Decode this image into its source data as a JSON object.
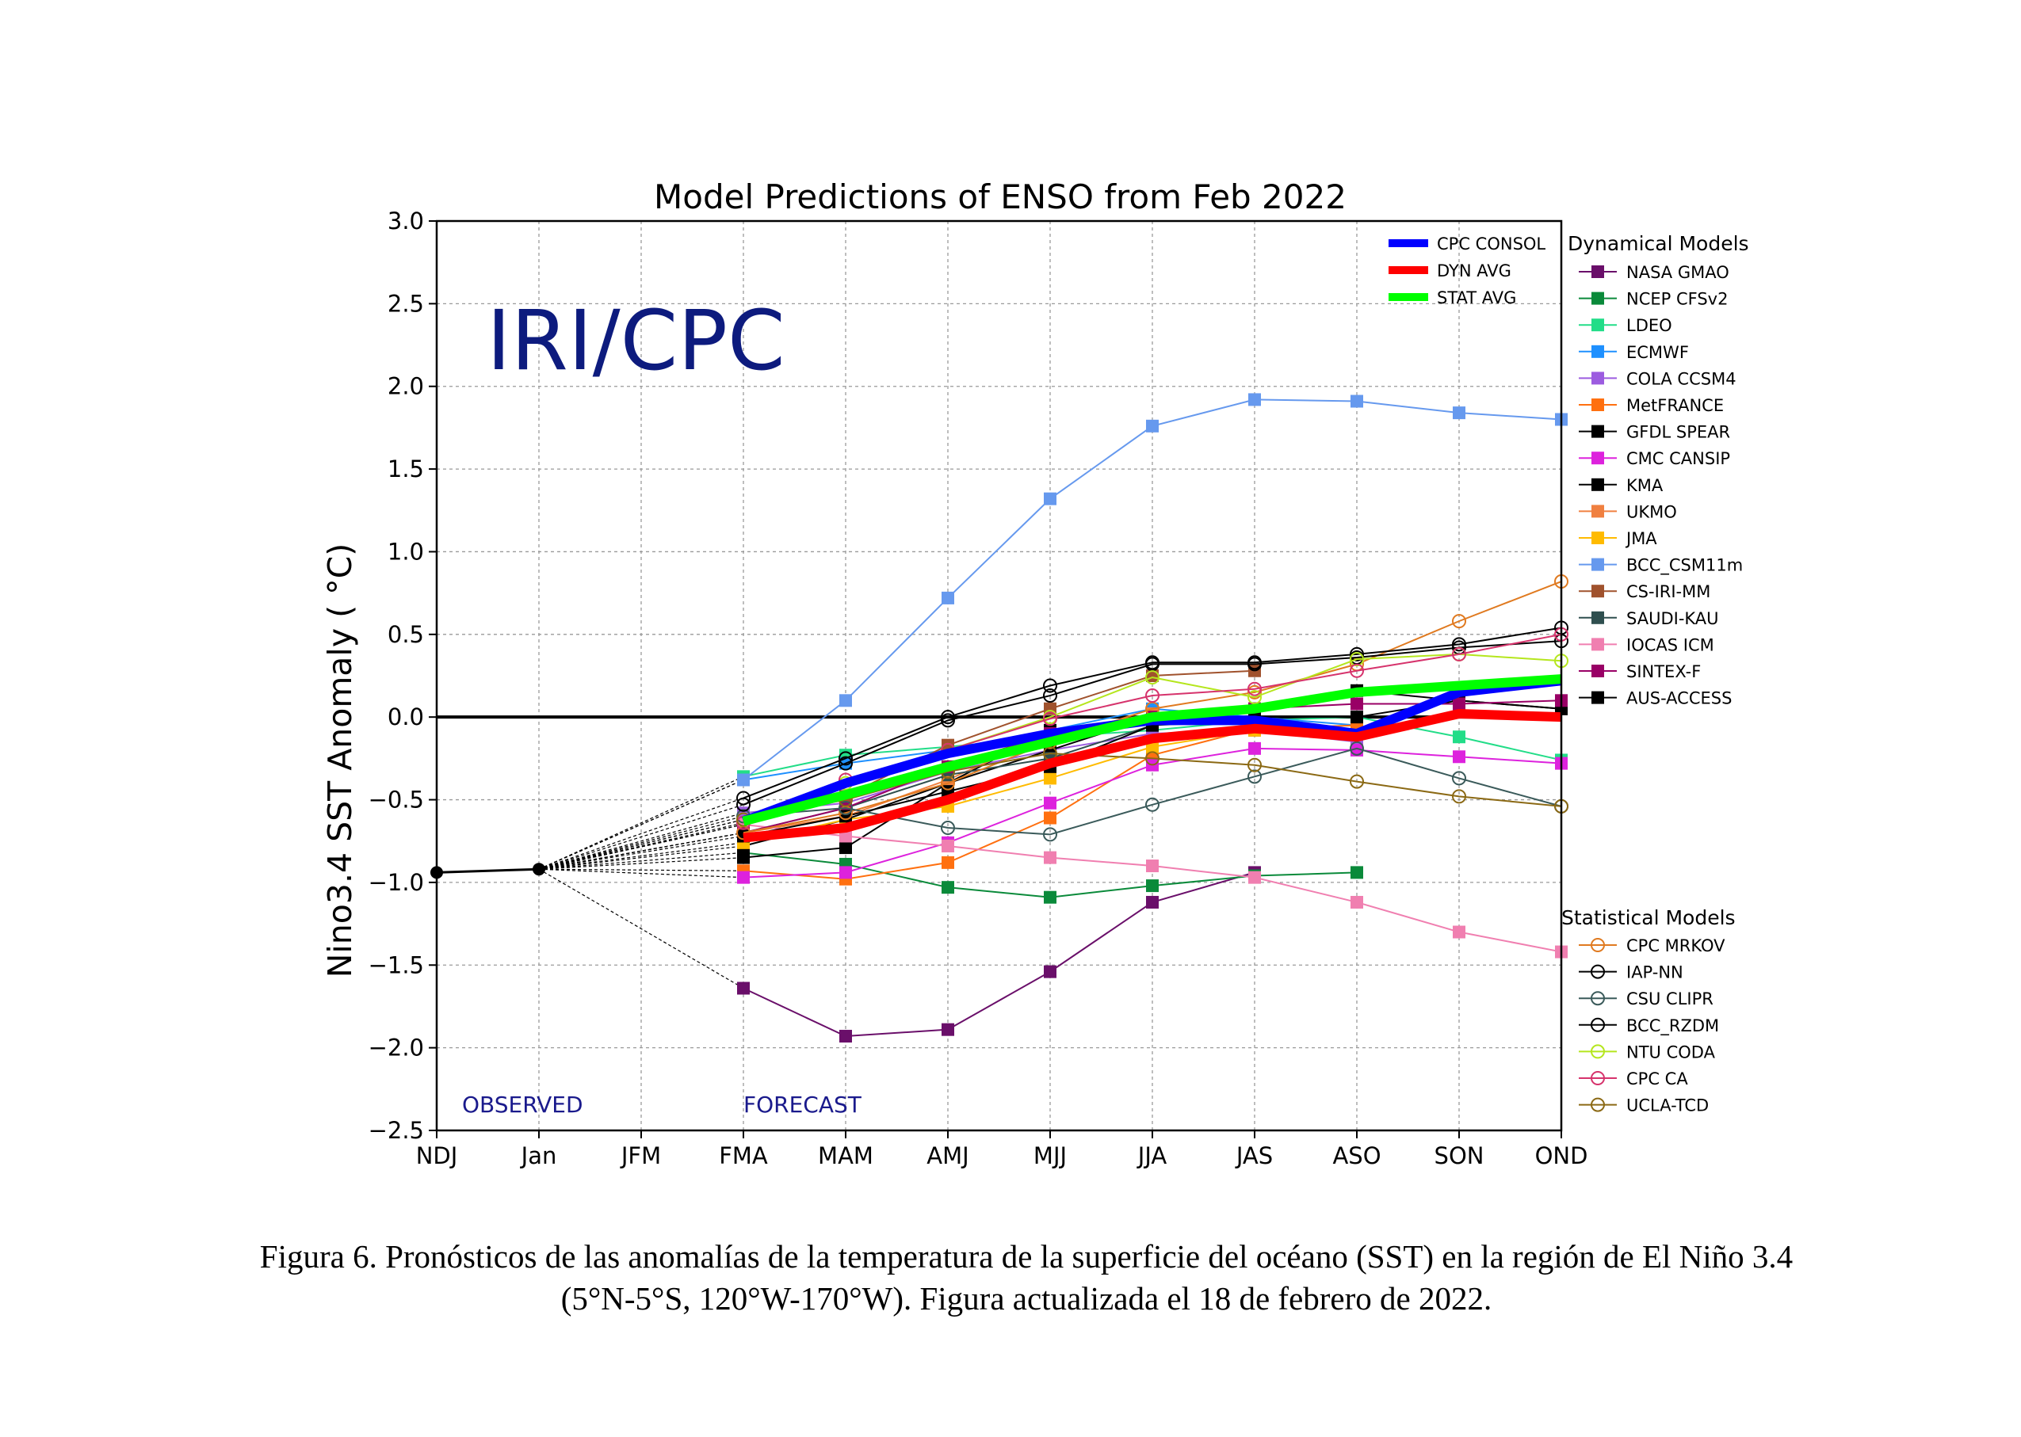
{
  "caption": {
    "line1": "Figura 6. Pronósticos de las anomalías de la temperatura de la superficie del océano (SST) en la región de El Niño 3.4",
    "line2": "(5°N-5°S, 120°W-170°W). Figura actualizada el 18 de febrero de 2022."
  },
  "chart_data": {
    "type": "line",
    "title": "Model Predictions of ENSO from Feb 2022",
    "ylabel": "Nino3.4 SST Anomaly ( °C)",
    "xlabel": "",
    "watermark": "IRI/CPC",
    "categories": [
      "NDJ",
      "Jan",
      "JFM",
      "FMA",
      "MAM",
      "AMJ",
      "MJJ",
      "JJA",
      "JAS",
      "ASO",
      "SON",
      "OND"
    ],
    "ylim": [
      -2.5,
      3.0
    ],
    "yticks": [
      -2.5,
      -2.0,
      -1.5,
      -1.0,
      -0.5,
      0.0,
      0.5,
      1.0,
      1.5,
      2.0,
      2.5,
      3.0
    ],
    "ytick_labels": [
      "−2.5",
      "−2.0",
      "−1.5",
      "−1.0",
      "−0.5",
      "0.0",
      "0.5",
      "1.0",
      "1.5",
      "2.0",
      "2.5",
      "3.0"
    ],
    "grid": true,
    "annotations": {
      "observed": "OBSERVED",
      "forecast": "FORECAST"
    },
    "observed": {
      "x": [
        "NDJ",
        "Jan"
      ],
      "values": [
        -0.94,
        -0.92
      ],
      "color": "#000000"
    },
    "averages_legend_placement": "top-right inside plot",
    "averages": [
      {
        "name": "CPC CONSOL",
        "color": "#0000ff",
        "values": [
          -0.63,
          -0.4,
          -0.22,
          -0.1,
          -0.02,
          -0.02,
          -0.1,
          0.15,
          0.22
        ]
      },
      {
        "name": "DYN AVG",
        "color": "#ff0000",
        "values": [
          -0.73,
          -0.67,
          -0.5,
          -0.28,
          -0.13,
          -0.07,
          -0.12,
          0.02,
          0.0
        ]
      },
      {
        "name": "STAT AVG",
        "color": "#00ff00",
        "values": [
          -0.63,
          -0.47,
          -0.3,
          -0.15,
          0.0,
          0.05,
          0.15,
          0.19,
          0.23
        ]
      }
    ],
    "dynamical_models_title": "Dynamical Models",
    "dynamical_models": [
      {
        "name": "NASA GMAO",
        "color": "#6a0f6a",
        "values": [
          -1.64,
          -1.93,
          -1.89,
          -1.54,
          -1.12,
          -0.94,
          null,
          null,
          null
        ]
      },
      {
        "name": "NCEP CFSv2",
        "color": "#0a8a3a",
        "values": [
          -0.82,
          -0.89,
          -1.03,
          -1.09,
          -1.02,
          -0.96,
          -0.94,
          null,
          null
        ]
      },
      {
        "name": "LDEO",
        "color": "#22dd88",
        "values": [
          -0.36,
          -0.23,
          -0.18,
          -0.12,
          -0.08,
          -0.02,
          0.0,
          -0.12,
          -0.26
        ]
      },
      {
        "name": "ECMWF",
        "color": "#1e90ff",
        "values": [
          -0.38,
          -0.28,
          -0.2,
          -0.08,
          0.05,
          0.0,
          -0.05,
          null,
          null
        ]
      },
      {
        "name": "COLA CCSM4",
        "color": "#9c5ce0",
        "values": [
          -0.58,
          -0.52,
          -0.33,
          -0.2,
          -0.1,
          -0.08,
          -0.15,
          null,
          null
        ]
      },
      {
        "name": "MetFRANCE",
        "color": "#ff7010",
        "values": [
          -0.93,
          -0.98,
          -0.88,
          -0.61,
          -0.23,
          -0.07,
          -0.05,
          null,
          null
        ]
      },
      {
        "name": "GFDL SPEAR",
        "color": "#000000",
        "values": [
          -0.85,
          -0.79,
          -0.4,
          -0.2,
          0.0,
          0.05,
          0.16,
          0.1,
          0.05
        ]
      },
      {
        "name": "CMC CANSIP",
        "color": "#dd22dd",
        "values": [
          -0.97,
          -0.94,
          -0.76,
          -0.52,
          -0.29,
          -0.19,
          -0.2,
          -0.24,
          -0.28
        ]
      },
      {
        "name": "KMA",
        "color": "#000000",
        "values": [
          -0.78,
          -0.62,
          -0.4,
          -0.08,
          -0.01,
          0.0,
          0.0,
          0.1,
          0.05
        ]
      },
      {
        "name": "UKMO",
        "color": "#f08040",
        "values": [
          -0.7,
          -0.6,
          -0.38,
          -0.1,
          0.02,
          0.05,
          null,
          null,
          null
        ]
      },
      {
        "name": "JMA",
        "color": "#ffbb00",
        "values": [
          -0.76,
          -0.62,
          -0.54,
          -0.37,
          -0.18,
          -0.08,
          null,
          null,
          null
        ]
      },
      {
        "name": "BCC_CSM11m",
        "color": "#6699ee",
        "values": [
          -0.38,
          0.1,
          0.72,
          1.32,
          1.76,
          1.92,
          1.91,
          1.84,
          1.8
        ]
      },
      {
        "name": "CS-IRI-MM",
        "color": "#a0522d",
        "values": [
          -0.65,
          -0.48,
          -0.17,
          0.05,
          0.25,
          0.28,
          null,
          null,
          null
        ]
      },
      {
        "name": "SAUDI-KAU",
        "color": "#2f4f4f",
        "values": [
          -0.7,
          -0.55,
          -0.35,
          -0.25,
          -0.05,
          -0.02,
          null,
          null,
          null
        ]
      },
      {
        "name": "IOCAS ICM",
        "color": "#f07fb0",
        "values": [
          -0.65,
          -0.72,
          -0.78,
          -0.85,
          -0.9,
          -0.97,
          -1.12,
          -1.3,
          -1.42
        ]
      },
      {
        "name": "SINTEX-F",
        "color": "#990066",
        "values": [
          -0.7,
          -0.55,
          -0.3,
          -0.1,
          0.0,
          0.05,
          0.08,
          0.08,
          0.1
        ]
      },
      {
        "name": "AUS-ACCESS",
        "color": "#000000",
        "values": [
          -0.72,
          -0.6,
          -0.45,
          -0.3,
          -0.05,
          0.0,
          null,
          null,
          null
        ]
      }
    ],
    "statistical_models_title": "Statistical Models",
    "statistical_models": [
      {
        "name": "CPC MRKOV",
        "color": "#e07a20",
        "values": [
          -0.7,
          -0.58,
          -0.4,
          -0.15,
          0.05,
          0.15,
          0.32,
          0.58,
          0.82
        ]
      },
      {
        "name": "IAP-NN",
        "color": "#000000",
        "values": [
          -0.49,
          -0.25,
          0.0,
          0.19,
          0.33,
          0.33,
          0.38,
          0.44,
          0.54
        ]
      },
      {
        "name": "CSU CLIPR",
        "color": "#3a5a5a",
        "values": [
          -0.6,
          -0.55,
          -0.67,
          -0.71,
          -0.53,
          -0.36,
          -0.19,
          -0.37,
          -0.54
        ]
      },
      {
        "name": "BCC_RZDM",
        "color": "#000000",
        "values": [
          -0.53,
          -0.28,
          -0.02,
          0.13,
          0.32,
          0.32,
          0.36,
          0.42,
          0.46
        ]
      },
      {
        "name": "NTU CODA",
        "color": "#b5e61d",
        "values": [
          -0.62,
          -0.4,
          -0.2,
          0.0,
          0.24,
          0.12,
          0.35,
          0.38,
          0.34
        ]
      },
      {
        "name": "CPC CA",
        "color": "#d6336c",
        "values": [
          -0.64,
          -0.38,
          -0.2,
          -0.01,
          0.13,
          0.17,
          0.28,
          0.38,
          0.5
        ]
      },
      {
        "name": "UCLA-TCD",
        "color": "#8b6914",
        "values": [
          -0.62,
          -0.5,
          -0.33,
          -0.22,
          -0.25,
          -0.29,
          -0.39,
          -0.48,
          -0.54
        ]
      }
    ]
  }
}
